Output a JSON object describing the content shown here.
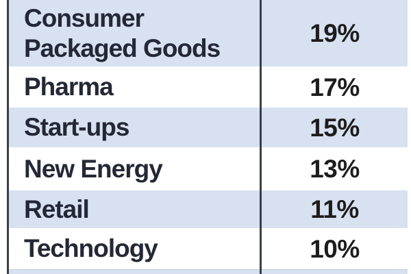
{
  "table": {
    "rows": [
      {
        "label": "Consumer Packaged Goods",
        "value": "19%"
      },
      {
        "label": "Pharma",
        "value": "17%"
      },
      {
        "label": "Start-ups",
        "value": "15%"
      },
      {
        "label": "New Energy",
        "value": "13%"
      },
      {
        "label": "Retail",
        "value": "11%"
      },
      {
        "label": "Technology",
        "value": "10%"
      }
    ]
  },
  "colors": {
    "row_alt": "#d7e1f0",
    "row_base": "#ffffff",
    "border": "#3a3e47",
    "label_text": "#242836",
    "value_text": "#1e1c1c",
    "hairline": "#c8ccd4"
  },
  "chart_data": {
    "type": "table",
    "categories": [
      "Consumer Packaged Goods",
      "Pharma",
      "Start-ups",
      "New Energy",
      "Retail",
      "Technology"
    ],
    "values": [
      19,
      17,
      15,
      13,
      11,
      10
    ],
    "unit": "%",
    "title": "",
    "layout": "two-column table, alternating light-blue and white rows, dark vertical divider between label and value columns"
  }
}
